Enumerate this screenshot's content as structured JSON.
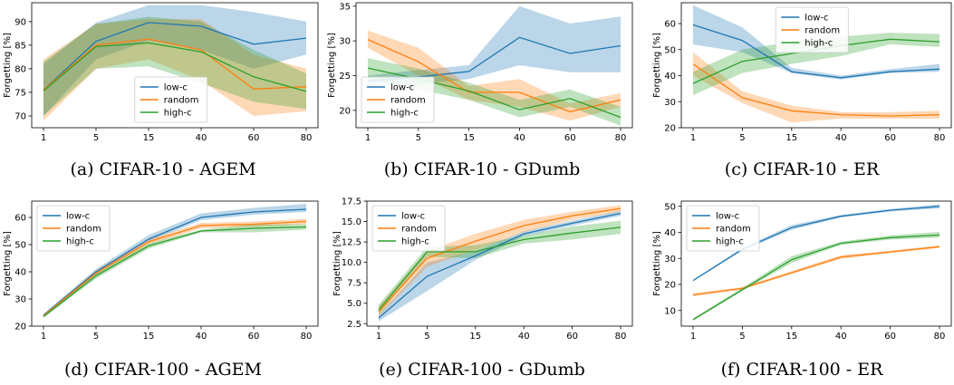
{
  "colors": {
    "low-c": "#1f77b4",
    "random": "#ff7f0e",
    "high-c": "#2ca02c"
  },
  "chart_data": [
    {
      "id": "a",
      "type": "line",
      "caption": "(a) CIFAR-10 - AGEM",
      "ylabel": "Forgetting [%]",
      "categories": [
        "1",
        "5",
        "15",
        "40",
        "60",
        "80"
      ],
      "ylim": [
        67.5,
        94
      ],
      "yticks": [
        "70",
        "75",
        "80",
        "85",
        "90"
      ],
      "ytick_values": [
        70,
        75,
        80,
        85,
        90
      ],
      "legend_position": "lower-center",
      "series": [
        {
          "name": "low-c",
          "values": [
            75.5,
            85.8,
            89.8,
            89.0,
            85.2,
            86.5
          ],
          "lower": [
            70,
            82,
            86,
            84,
            80,
            83
          ],
          "upper": [
            81,
            89.8,
            93.5,
            93.5,
            92,
            90
          ]
        },
        {
          "name": "random",
          "values": [
            75.5,
            85.0,
            86.3,
            84.0,
            75.7,
            76.2
          ],
          "lower": [
            69,
            80,
            82,
            77.5,
            70,
            71
          ],
          "upper": [
            82,
            89.5,
            90.5,
            90.5,
            83,
            80
          ]
        },
        {
          "name": "high-c",
          "values": [
            75.3,
            84.7,
            85.5,
            83.6,
            78.3,
            75.2
          ],
          "lower": [
            70,
            80,
            80.5,
            77,
            73,
            71.5
          ],
          "upper": [
            81.5,
            89.5,
            91,
            90,
            84,
            79
          ]
        }
      ]
    },
    {
      "id": "b",
      "type": "line",
      "caption": "(b) CIFAR-10 - GDumb",
      "ylabel": "Forgetting [%]",
      "categories": [
        "1",
        "5",
        "15",
        "40",
        "60",
        "80"
      ],
      "ylim": [
        17.5,
        35.5
      ],
      "yticks": [
        "20",
        "25",
        "30",
        "35"
      ],
      "ytick_values": [
        20,
        25,
        30,
        35
      ],
      "legend_position": "lower-left",
      "series": [
        {
          "name": "low-c",
          "values": [
            24.2,
            24.8,
            25.6,
            30.5,
            28.2,
            29.3
          ],
          "lower": [
            23.5,
            23.8,
            24.5,
            26.5,
            25.5,
            25.5
          ],
          "upper": [
            25,
            25.8,
            26.5,
            35,
            32.5,
            33.5
          ]
        },
        {
          "name": "random",
          "values": [
            30.2,
            27.0,
            22.6,
            22.6,
            19.8,
            21.5
          ],
          "lower": [
            29,
            25,
            21.5,
            20.5,
            18.5,
            20.5
          ],
          "upper": [
            31.5,
            29,
            23.5,
            24.5,
            21,
            22.5
          ]
        },
        {
          "name": "high-c",
          "values": [
            26.1,
            24.5,
            22.8,
            20.1,
            21.7,
            19.0
          ],
          "lower": [
            24.5,
            23,
            21.5,
            19,
            20.5,
            17.8
          ],
          "upper": [
            27.5,
            26,
            24,
            21.5,
            23,
            20.5
          ]
        }
      ]
    },
    {
      "id": "c",
      "type": "line",
      "caption": "(c) CIFAR-10 - ER",
      "ylabel": "Forgetting [%]",
      "categories": [
        "1",
        "5",
        "15",
        "40",
        "60",
        "80"
      ],
      "ylim": [
        20,
        68
      ],
      "yticks": [
        "20",
        "30",
        "40",
        "50",
        "60"
      ],
      "ytick_values": [
        20,
        30,
        40,
        50,
        60
      ],
      "legend_position": "upper-center",
      "series": [
        {
          "name": "low-c",
          "values": [
            59.5,
            53.5,
            41.5,
            39.2,
            41.5,
            42.5
          ],
          "lower": [
            52,
            49,
            41,
            38.5,
            41,
            41.5
          ],
          "upper": [
            67,
            58.5,
            43,
            40,
            42.5,
            44.5
          ]
        },
        {
          "name": "random",
          "values": [
            44.5,
            31.5,
            26.5,
            25.0,
            24.5,
            25.0
          ],
          "lower": [
            40,
            29.5,
            22,
            23.5,
            23.5,
            23.5
          ],
          "upper": [
            49,
            34,
            28.5,
            26,
            26,
            26.5
          ]
        },
        {
          "name": "high-c",
          "values": [
            37.0,
            45.5,
            48.5,
            51.5,
            54.0,
            53.0
          ],
          "lower": [
            32.5,
            41,
            44.5,
            47.5,
            52,
            51
          ],
          "upper": [
            41.5,
            50,
            53,
            55,
            56.5,
            56
          ]
        }
      ]
    },
    {
      "id": "d",
      "type": "line",
      "caption": "(d) CIFAR-100 - AGEM",
      "ylabel": "Forgetting [%]",
      "categories": [
        "1",
        "5",
        "15",
        "40",
        "60",
        "80"
      ],
      "ylim": [
        20,
        66
      ],
      "yticks": [
        "20",
        "30",
        "40",
        "50",
        "60"
      ],
      "ytick_values": [
        20,
        30,
        40,
        50,
        60
      ],
      "legend_position": "upper-left",
      "series": [
        {
          "name": "low-c",
          "values": [
            24.0,
            40.0,
            52.0,
            60.0,
            62.0,
            63.0
          ],
          "lower": [
            23.5,
            39,
            51,
            59,
            61,
            62
          ],
          "upper": [
            24.5,
            41,
            53.5,
            61.5,
            63.5,
            65
          ]
        },
        {
          "name": "random",
          "values": [
            23.8,
            39.5,
            51.0,
            57.0,
            57.5,
            58.5
          ],
          "lower": [
            23.3,
            38.5,
            50,
            56,
            56.5,
            57.5
          ],
          "upper": [
            24.3,
            40.5,
            52,
            58,
            58.5,
            59.5
          ]
        },
        {
          "name": "high-c",
          "values": [
            23.5,
            38.5,
            49.5,
            55.0,
            56.0,
            56.5
          ],
          "lower": [
            23,
            37.5,
            48.5,
            54.5,
            54.5,
            55.5
          ],
          "upper": [
            24,
            39.5,
            50.5,
            55.5,
            57.5,
            57.5
          ]
        }
      ]
    },
    {
      "id": "e",
      "type": "line",
      "caption": "(e) CIFAR-100 - GDumb",
      "ylabel": "Forgetting [%]",
      "categories": [
        "1",
        "5",
        "15",
        "40",
        "60",
        "80"
      ],
      "ylim": [
        2.2,
        17.5
      ],
      "yticks": [
        "2.5",
        "5.0",
        "7.5",
        "10.0",
        "12.5",
        "15.0",
        "17.5"
      ],
      "ytick_values": [
        2.5,
        5.0,
        7.5,
        10.0,
        12.5,
        15.0,
        17.5
      ],
      "legend_position": "upper-left",
      "series": [
        {
          "name": "low-c",
          "values": [
            3.2,
            8.3,
            10.8,
            13.5,
            14.8,
            16.0
          ],
          "lower": [
            2.8,
            6.5,
            10.3,
            13.2,
            14.5,
            15.7
          ],
          "upper": [
            3.6,
            10,
            11.4,
            13.8,
            15.1,
            16.3
          ]
        },
        {
          "name": "random",
          "values": [
            4.0,
            10.5,
            12.6,
            14.5,
            15.7,
            16.6
          ],
          "lower": [
            3.4,
            9.5,
            11.5,
            13.7,
            15.2,
            16.2
          ],
          "upper": [
            4.6,
            11.4,
            13.5,
            15.2,
            16.2,
            17
          ]
        },
        {
          "name": "high-c",
          "values": [
            4.2,
            11.3,
            11.3,
            12.8,
            13.6,
            14.3
          ],
          "lower": [
            3.6,
            10.7,
            10.5,
            12.3,
            12.8,
            13.5
          ],
          "upper": [
            4.8,
            11.9,
            12.1,
            13.3,
            14.4,
            15.1
          ]
        }
      ]
    },
    {
      "id": "f",
      "type": "line",
      "caption": "(f) CIFAR-100 - ER",
      "ylabel": "Forgetting [%]",
      "categories": [
        "1",
        "5",
        "15",
        "40",
        "60",
        "80"
      ],
      "ylim": [
        4,
        52
      ],
      "yticks": [
        "10",
        "20",
        "30",
        "40",
        "50"
      ],
      "ytick_values": [
        10,
        20,
        30,
        40,
        50
      ],
      "legend_position": "upper-left",
      "series": [
        {
          "name": "low-c",
          "values": [
            21.5,
            33.5,
            41.8,
            46.2,
            48.5,
            50.0
          ],
          "lower": [
            21.3,
            33,
            41,
            45.7,
            48,
            49.2
          ],
          "upper": [
            21.7,
            34,
            42.8,
            46.7,
            49,
            50.8
          ]
        },
        {
          "name": "random",
          "values": [
            16.0,
            18.5,
            24.5,
            30.5,
            32.5,
            34.5
          ],
          "lower": [
            15.4,
            18,
            24,
            29.8,
            32,
            34
          ],
          "upper": [
            16.6,
            19,
            25.2,
            31.2,
            33,
            35
          ]
        },
        {
          "name": "high-c",
          "values": [
            6.5,
            18.0,
            29.5,
            35.8,
            38.0,
            39.0
          ],
          "lower": [
            6,
            17.5,
            28.2,
            35.2,
            37.2,
            38
          ],
          "upper": [
            7,
            18.7,
            30.8,
            36.5,
            38.8,
            40.2
          ]
        }
      ]
    }
  ]
}
